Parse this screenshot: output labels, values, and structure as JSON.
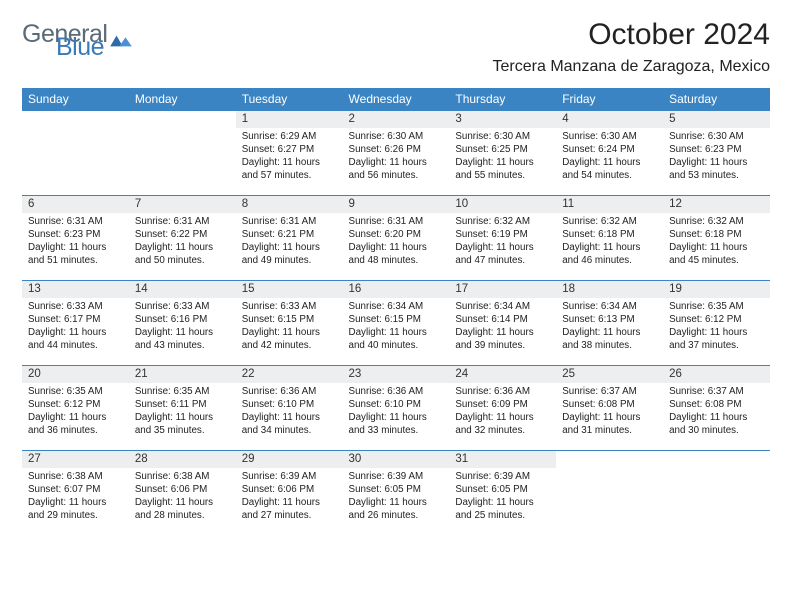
{
  "brand": {
    "word1": "General",
    "word2": "Blue"
  },
  "title": "October 2024",
  "location": "Tercera Manzana de Zaragoza, Mexico",
  "colors": {
    "header_bg": "#3a84c4",
    "header_text": "#ffffff",
    "daynum_bg": "#eceeef",
    "border": "#3a84c4",
    "logo_gray": "#5a6a78",
    "logo_blue": "#3a7ab8"
  },
  "weekdays": [
    "Sunday",
    "Monday",
    "Tuesday",
    "Wednesday",
    "Thursday",
    "Friday",
    "Saturday"
  ],
  "weeks": [
    [
      null,
      null,
      {
        "n": "1",
        "sr": "6:29 AM",
        "ss": "6:27 PM",
        "dl": "11 hours and 57 minutes."
      },
      {
        "n": "2",
        "sr": "6:30 AM",
        "ss": "6:26 PM",
        "dl": "11 hours and 56 minutes."
      },
      {
        "n": "3",
        "sr": "6:30 AM",
        "ss": "6:25 PM",
        "dl": "11 hours and 55 minutes."
      },
      {
        "n": "4",
        "sr": "6:30 AM",
        "ss": "6:24 PM",
        "dl": "11 hours and 54 minutes."
      },
      {
        "n": "5",
        "sr": "6:30 AM",
        "ss": "6:23 PM",
        "dl": "11 hours and 53 minutes."
      }
    ],
    [
      {
        "n": "6",
        "sr": "6:31 AM",
        "ss": "6:23 PM",
        "dl": "11 hours and 51 minutes."
      },
      {
        "n": "7",
        "sr": "6:31 AM",
        "ss": "6:22 PM",
        "dl": "11 hours and 50 minutes."
      },
      {
        "n": "8",
        "sr": "6:31 AM",
        "ss": "6:21 PM",
        "dl": "11 hours and 49 minutes."
      },
      {
        "n": "9",
        "sr": "6:31 AM",
        "ss": "6:20 PM",
        "dl": "11 hours and 48 minutes."
      },
      {
        "n": "10",
        "sr": "6:32 AM",
        "ss": "6:19 PM",
        "dl": "11 hours and 47 minutes."
      },
      {
        "n": "11",
        "sr": "6:32 AM",
        "ss": "6:18 PM",
        "dl": "11 hours and 46 minutes."
      },
      {
        "n": "12",
        "sr": "6:32 AM",
        "ss": "6:18 PM",
        "dl": "11 hours and 45 minutes."
      }
    ],
    [
      {
        "n": "13",
        "sr": "6:33 AM",
        "ss": "6:17 PM",
        "dl": "11 hours and 44 minutes."
      },
      {
        "n": "14",
        "sr": "6:33 AM",
        "ss": "6:16 PM",
        "dl": "11 hours and 43 minutes."
      },
      {
        "n": "15",
        "sr": "6:33 AM",
        "ss": "6:15 PM",
        "dl": "11 hours and 42 minutes."
      },
      {
        "n": "16",
        "sr": "6:34 AM",
        "ss": "6:15 PM",
        "dl": "11 hours and 40 minutes."
      },
      {
        "n": "17",
        "sr": "6:34 AM",
        "ss": "6:14 PM",
        "dl": "11 hours and 39 minutes."
      },
      {
        "n": "18",
        "sr": "6:34 AM",
        "ss": "6:13 PM",
        "dl": "11 hours and 38 minutes."
      },
      {
        "n": "19",
        "sr": "6:35 AM",
        "ss": "6:12 PM",
        "dl": "11 hours and 37 minutes."
      }
    ],
    [
      {
        "n": "20",
        "sr": "6:35 AM",
        "ss": "6:12 PM",
        "dl": "11 hours and 36 minutes."
      },
      {
        "n": "21",
        "sr": "6:35 AM",
        "ss": "6:11 PM",
        "dl": "11 hours and 35 minutes."
      },
      {
        "n": "22",
        "sr": "6:36 AM",
        "ss": "6:10 PM",
        "dl": "11 hours and 34 minutes."
      },
      {
        "n": "23",
        "sr": "6:36 AM",
        "ss": "6:10 PM",
        "dl": "11 hours and 33 minutes."
      },
      {
        "n": "24",
        "sr": "6:36 AM",
        "ss": "6:09 PM",
        "dl": "11 hours and 32 minutes."
      },
      {
        "n": "25",
        "sr": "6:37 AM",
        "ss": "6:08 PM",
        "dl": "11 hours and 31 minutes."
      },
      {
        "n": "26",
        "sr": "6:37 AM",
        "ss": "6:08 PM",
        "dl": "11 hours and 30 minutes."
      }
    ],
    [
      {
        "n": "27",
        "sr": "6:38 AM",
        "ss": "6:07 PM",
        "dl": "11 hours and 29 minutes."
      },
      {
        "n": "28",
        "sr": "6:38 AM",
        "ss": "6:06 PM",
        "dl": "11 hours and 28 minutes."
      },
      {
        "n": "29",
        "sr": "6:39 AM",
        "ss": "6:06 PM",
        "dl": "11 hours and 27 minutes."
      },
      {
        "n": "30",
        "sr": "6:39 AM",
        "ss": "6:05 PM",
        "dl": "11 hours and 26 minutes."
      },
      {
        "n": "31",
        "sr": "6:39 AM",
        "ss": "6:05 PM",
        "dl": "11 hours and 25 minutes."
      },
      null,
      null
    ]
  ],
  "labels": {
    "sunrise": "Sunrise: ",
    "sunset": "Sunset: ",
    "daylight": "Daylight: "
  }
}
